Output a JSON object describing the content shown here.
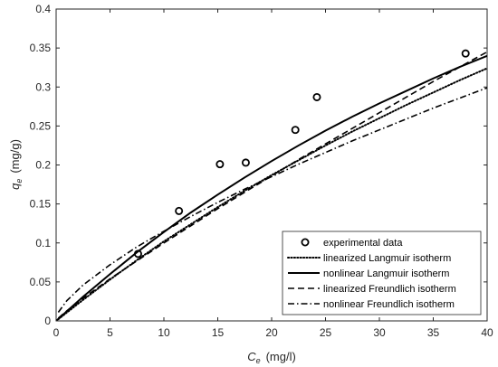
{
  "chart_data": {
    "type": "scatter",
    "title": "",
    "xlabel": {
      "symbol": "C",
      "subscript": "e",
      "unit": "(mg/l)"
    },
    "ylabel": {
      "symbol": "q",
      "subscript": "e",
      "unit": "(mg/g)"
    },
    "xlim": [
      0,
      40
    ],
    "ylim": [
      0,
      0.4
    ],
    "xticks": [
      0,
      5,
      10,
      15,
      20,
      25,
      30,
      35,
      40
    ],
    "yticks": [
      0,
      0.05,
      0.1,
      0.15,
      0.2,
      0.25,
      0.3,
      0.35,
      0.4
    ],
    "xtick_labels": [
      "0",
      "5",
      "10",
      "15",
      "20",
      "25",
      "30",
      "35",
      "40"
    ],
    "ytick_labels": [
      "0",
      "0.05",
      "0.1",
      "0.15",
      "0.2",
      "0.25",
      "0.3",
      "0.35",
      "0.4"
    ],
    "grid": false,
    "legend_position": "bottom-right",
    "experimental": {
      "name": "experimental data",
      "x": [
        7.6,
        11.4,
        15.2,
        17.6,
        22.2,
        24.2,
        38.0
      ],
      "y": [
        0.086,
        0.141,
        0.201,
        0.203,
        0.245,
        0.287,
        0.343
      ]
    },
    "series": [
      {
        "name": "linearized Langmuir isotherm",
        "style": "dotted",
        "x": [
          0,
          2.5,
          5,
          7.5,
          10,
          12.5,
          15,
          17.5,
          20,
          22.5,
          25,
          27.5,
          30,
          32.5,
          35,
          37.5,
          40
        ],
        "y": [
          0,
          0.027,
          0.053,
          0.078,
          0.102,
          0.124,
          0.146,
          0.167,
          0.187,
          0.206,
          0.225,
          0.243,
          0.26,
          0.277,
          0.293,
          0.309,
          0.324
        ]
      },
      {
        "name": "nonlinear Langmuir isotherm",
        "style": "solid",
        "x": [
          0,
          2.5,
          5,
          7.5,
          10,
          12.5,
          15,
          17.5,
          20,
          22.5,
          25,
          27.5,
          30,
          32.5,
          35,
          37.5,
          40
        ],
        "y": [
          0,
          0.031,
          0.06,
          0.088,
          0.114,
          0.139,
          0.162,
          0.184,
          0.205,
          0.225,
          0.244,
          0.262,
          0.279,
          0.295,
          0.311,
          0.326,
          0.34
        ]
      },
      {
        "name": "linearized Freundlich isotherm",
        "style": "dashed",
        "x": [
          0.2,
          1,
          2.5,
          5,
          7.5,
          10,
          12.5,
          15,
          17.5,
          20,
          22.5,
          25,
          27.5,
          30,
          32.5,
          35,
          37.5,
          40
        ],
        "y": [
          0.0035,
          0.013,
          0.029,
          0.054,
          0.077,
          0.1,
          0.122,
          0.144,
          0.165,
          0.186,
          0.207,
          0.227,
          0.247,
          0.267,
          0.287,
          0.307,
          0.326,
          0.345
        ]
      },
      {
        "name": "nonlinear Freundlich isotherm",
        "style": "dashdot",
        "x": [
          0.2,
          1,
          2.5,
          5,
          7.5,
          10,
          12.5,
          15,
          17.5,
          20,
          22.5,
          25,
          27.5,
          30,
          32.5,
          35,
          37.5,
          40
        ],
        "y": [
          0.011,
          0.026,
          0.046,
          0.072,
          0.095,
          0.115,
          0.134,
          0.152,
          0.169,
          0.185,
          0.201,
          0.216,
          0.231,
          0.245,
          0.259,
          0.273,
          0.286,
          0.299
        ]
      }
    ]
  },
  "colors": {
    "line": "#000000",
    "axis": "#262626",
    "background": "#ffffff"
  }
}
